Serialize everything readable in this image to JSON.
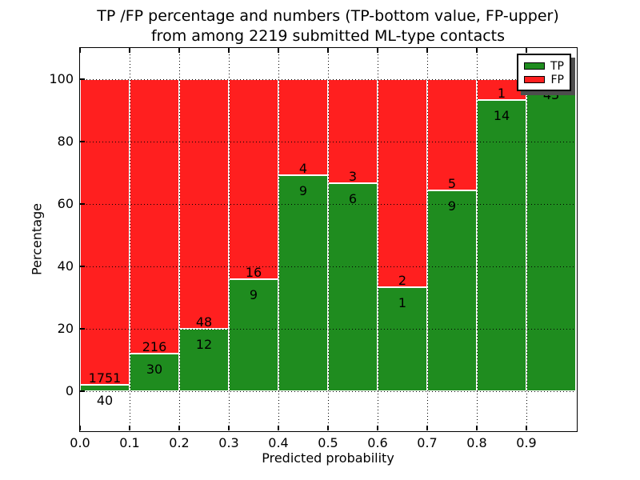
{
  "title": {
    "line1": "TP /FP percentage and numbers (TP-bottom value, FP-upper)",
    "line2": "from among 2219 submitted ML-type contacts"
  },
  "axes": {
    "xlabel": "Predicted probability",
    "ylabel": "Percentage",
    "xtick_labels": [
      "0.0",
      "0.1",
      "0.2",
      "0.3",
      "0.4",
      "0.5",
      "0.6",
      "0.7",
      "0.8",
      "0.9"
    ],
    "ytick_labels": [
      "0",
      "20",
      "40",
      "60",
      "80",
      "100"
    ]
  },
  "legend": {
    "items": [
      {
        "label": "TP",
        "color": "#1f8c1f"
      },
      {
        "label": "FP",
        "color": "#ff1f1f"
      }
    ]
  },
  "colors": {
    "tp": "#1f8c1f",
    "fp": "#ff1f1f",
    "bar_edge": "#ffffff",
    "grid": "#000000",
    "background": "#ffffff",
    "text": "#000000"
  },
  "chart_data": {
    "type": "bar",
    "stacked": true,
    "normalized": "each bin scaled to 100%, segment labels show raw counts",
    "title": "TP /FP percentage and numbers (TP-bottom value, FP-upper) from among 2219 submitted ML-type contacts",
    "xlabel": "Predicted probability",
    "ylabel": "Percentage",
    "total_contacts": 2219,
    "bin_start": [
      0.0,
      0.1,
      0.2,
      0.3,
      0.4,
      0.5,
      0.6,
      0.7,
      0.8,
      0.9
    ],
    "bin_width": 0.1,
    "series": [
      {
        "name": "TP",
        "color": "#1f8c1f",
        "counts": [
          40,
          30,
          12,
          9,
          9,
          6,
          1,
          9,
          14,
          43
        ]
      },
      {
        "name": "FP",
        "color": "#ff1f1f",
        "counts": [
          1751,
          216,
          48,
          16,
          4,
          3,
          2,
          5,
          1,
          0
        ]
      }
    ],
    "tp_percent": [
      2.2,
      12.2,
      20.0,
      36.0,
      69.2,
      66.7,
      33.3,
      64.3,
      93.3,
      100.0
    ],
    "xlim": [
      0,
      1
    ],
    "ylim": [
      -12.5,
      110
    ],
    "xticks": [
      0.0,
      0.1,
      0.2,
      0.3,
      0.4,
      0.5,
      0.6,
      0.7,
      0.8,
      0.9
    ],
    "yticks": [
      0,
      20,
      40,
      60,
      80,
      100
    ],
    "grid": "dotted, drawn over bars",
    "legend_position": "upper right"
  }
}
